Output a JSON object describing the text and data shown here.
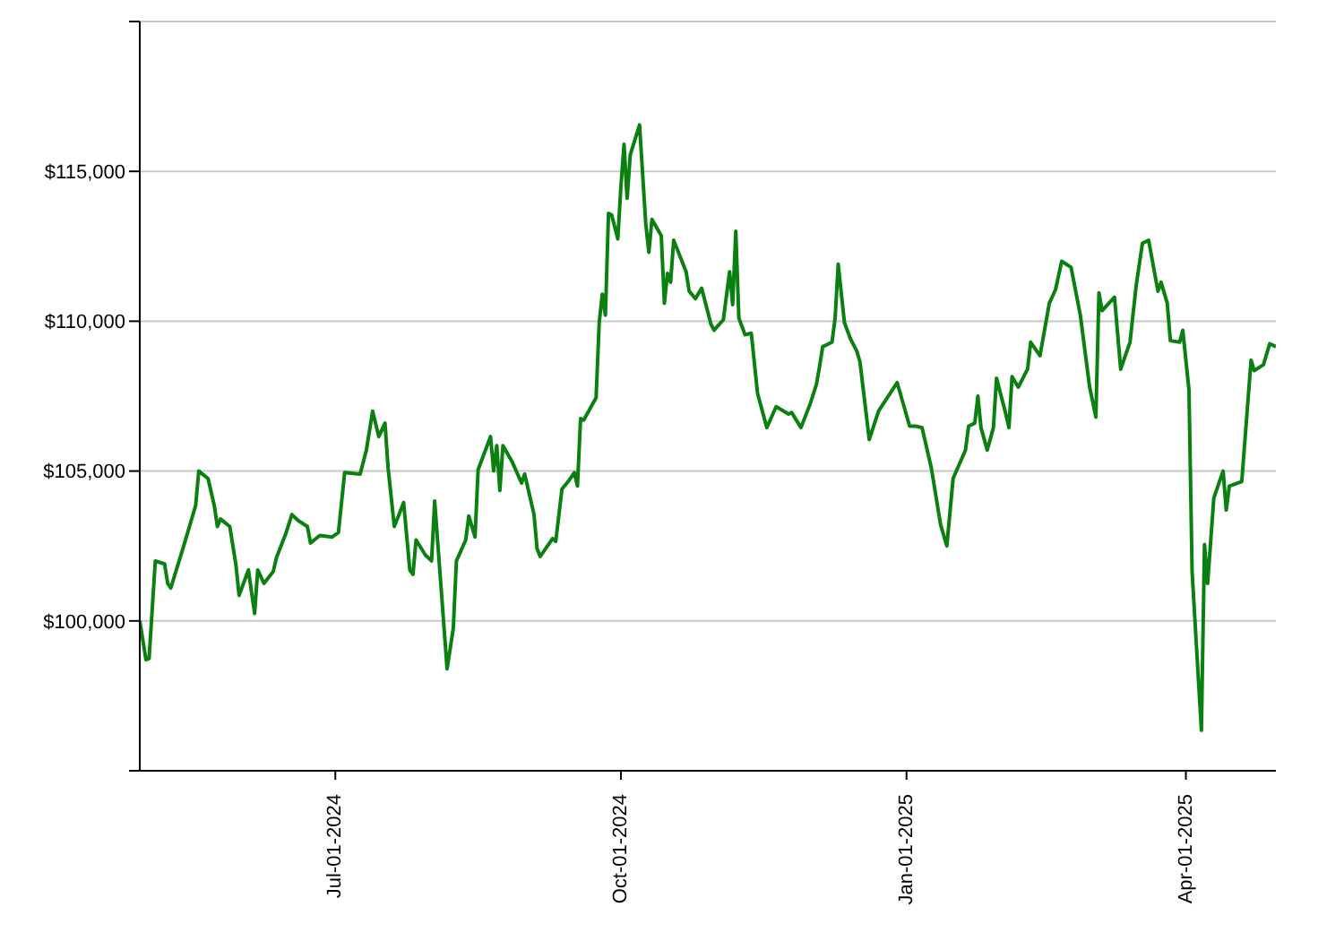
{
  "chart_data": {
    "type": "line",
    "xlim": [
      "2024-04-29",
      "2025-04-30"
    ],
    "xticks": [
      {
        "value": "2024-07-01",
        "label": "Jul-01-2024"
      },
      {
        "value": "2024-10-01",
        "label": "Oct-01-2024"
      },
      {
        "value": "2025-01-01",
        "label": "Jan-01-2025"
      },
      {
        "value": "2025-04-01",
        "label": "Apr-01-2025"
      }
    ],
    "ylim": [
      95000,
      120000
    ],
    "yticks": [
      {
        "value": 95000,
        "label": null
      },
      {
        "value": 100000,
        "label": "$100,000"
      },
      {
        "value": 105000,
        "label": "$105,000"
      },
      {
        "value": 110000,
        "label": "$110,000"
      },
      {
        "value": 115000,
        "label": "$115,000"
      },
      {
        "value": 120000,
        "label": null
      }
    ],
    "grid": "y",
    "marker": "none",
    "line_style": "solid",
    "x": [
      "2024-04-29",
      "2024-05-01",
      "2024-05-02",
      "2024-05-04",
      "2024-05-07",
      "2024-05-08",
      "2024-05-09",
      "2024-05-13",
      "2024-05-15",
      "2024-05-17",
      "2024-05-18",
      "2024-05-21",
      "2024-05-23",
      "2024-05-24",
      "2024-05-25",
      "2024-05-28",
      "2024-05-30",
      "2024-05-31",
      "2024-06-03",
      "2024-06-05",
      "2024-06-06",
      "2024-06-08",
      "2024-06-11",
      "2024-06-12",
      "2024-06-15",
      "2024-06-17",
      "2024-06-19",
      "2024-06-22",
      "2024-06-23",
      "2024-06-26",
      "2024-06-30",
      "2024-07-02",
      "2024-07-04",
      "2024-07-09",
      "2024-07-11",
      "2024-07-13",
      "2024-07-15",
      "2024-07-17",
      "2024-07-18",
      "2024-07-20",
      "2024-07-23",
      "2024-07-25",
      "2024-07-26",
      "2024-07-27",
      "2024-07-30",
      "2024-08-01",
      "2024-08-02",
      "2024-08-06",
      "2024-08-08",
      "2024-08-09",
      "2024-08-12",
      "2024-08-13",
      "2024-08-15",
      "2024-08-16",
      "2024-08-20",
      "2024-08-21",
      "2024-08-22",
      "2024-08-23",
      "2024-08-24",
      "2024-08-27",
      "2024-08-30",
      "2024-08-31",
      "2024-09-03",
      "2024-09-04",
      "2024-09-05",
      "2024-09-09",
      "2024-09-10",
      "2024-09-12",
      "2024-09-14",
      "2024-09-16",
      "2024-09-17",
      "2024-09-18",
      "2024-09-19",
      "2024-09-23",
      "2024-09-24",
      "2024-09-25",
      "2024-09-26",
      "2024-09-27",
      "2024-09-28",
      "2024-09-30",
      "2024-10-01",
      "2024-10-02",
      "2024-10-03",
      "2024-10-04",
      "2024-10-07",
      "2024-10-09",
      "2024-10-10",
      "2024-10-11",
      "2024-10-14",
      "2024-10-15",
      "2024-10-16",
      "2024-10-17",
      "2024-10-18",
      "2024-10-22",
      "2024-10-23",
      "2024-10-25",
      "2024-10-27",
      "2024-10-30",
      "2024-10-31",
      "2024-11-03",
      "2024-11-05",
      "2024-11-06",
      "2024-11-07",
      "2024-11-08",
      "2024-11-10",
      "2024-11-12",
      "2024-11-14",
      "2024-11-17",
      "2024-11-20",
      "2024-11-24",
      "2024-11-25",
      "2024-11-28",
      "2024-12-01",
      "2024-12-03",
      "2024-12-04",
      "2024-12-05",
      "2024-12-08",
      "2024-12-09",
      "2024-12-10",
      "2024-12-12",
      "2024-12-14",
      "2024-12-16",
      "2024-12-17",
      "2024-12-20",
      "2024-12-23",
      "2024-12-29",
      "2025-01-02",
      "2025-01-04",
      "2025-01-06",
      "2025-01-09",
      "2025-01-12",
      "2025-01-14",
      "2025-01-16",
      "2025-01-20",
      "2025-01-21",
      "2025-01-23",
      "2025-01-24",
      "2025-01-25",
      "2025-01-27",
      "2025-01-29",
      "2025-01-30",
      "2025-02-02",
      "2025-02-03",
      "2025-02-04",
      "2025-02-06",
      "2025-02-09",
      "2025-02-10",
      "2025-02-13",
      "2025-02-16",
      "2025-02-18",
      "2025-02-20",
      "2025-02-23",
      "2025-02-26",
      "2025-03-01",
      "2025-03-03",
      "2025-03-04",
      "2025-03-05",
      "2025-03-09",
      "2025-03-11",
      "2025-03-14",
      "2025-03-16",
      "2025-03-18",
      "2025-03-20",
      "2025-03-23",
      "2025-03-24",
      "2025-03-26",
      "2025-03-27",
      "2025-03-30",
      "2025-03-31",
      "2025-04-02",
      "2025-04-03",
      "2025-04-06",
      "2025-04-07",
      "2025-04-08",
      "2025-04-10",
      "2025-04-13",
      "2025-04-14",
      "2025-04-15",
      "2025-04-19",
      "2025-04-22",
      "2025-04-23",
      "2025-04-26",
      "2025-04-28",
      "2025-04-30"
    ],
    "series": [
      {
        "color": "#0a8010",
        "values": [
          100000,
          98700,
          98750,
          102000,
          101900,
          101250,
          101100,
          102450,
          103150,
          103850,
          105000,
          104750,
          103850,
          103150,
          103400,
          103150,
          101850,
          100850,
          101700,
          100250,
          101700,
          101250,
          101650,
          102100,
          102900,
          103550,
          103350,
          103150,
          102600,
          102850,
          102800,
          102950,
          104950,
          104900,
          105700,
          107000,
          106150,
          106600,
          105100,
          103150,
          103950,
          101700,
          101550,
          102700,
          102200,
          102000,
          104000,
          98400,
          99750,
          102000,
          102700,
          103500,
          102800,
          105050,
          106150,
          105000,
          105850,
          104350,
          105850,
          105300,
          104600,
          104900,
          103550,
          102400,
          102150,
          102750,
          102650,
          104400,
          104650,
          104950,
          104500,
          106750,
          106700,
          107450,
          109950,
          110900,
          110200,
          113600,
          113550,
          112750,
          114500,
          115900,
          114100,
          115550,
          116550,
          113250,
          112300,
          113400,
          112850,
          110600,
          111600,
          111300,
          112700,
          111650,
          111000,
          110750,
          111100,
          109900,
          109700,
          110050,
          111650,
          110550,
          113000,
          110100,
          109550,
          109600,
          107600,
          106450,
          107150,
          106900,
          106950,
          106450,
          107250,
          107900,
          108500,
          109150,
          109300,
          110100,
          111900,
          109950,
          109400,
          109000,
          108650,
          106050,
          107000,
          107950,
          106500,
          106500,
          106450,
          105100,
          103200,
          102500,
          104750,
          105700,
          106500,
          106600,
          107500,
          106450,
          105700,
          106450,
          108100,
          106900,
          106450,
          108150,
          107800,
          108400,
          109300,
          108850,
          110600,
          111050,
          112000,
          111800,
          110200,
          107800,
          106800,
          110950,
          110350,
          110800,
          108400,
          109300,
          111200,
          112600,
          112700,
          111000,
          111300,
          110600,
          109350,
          109300,
          109700,
          107700,
          101650,
          96350,
          102550,
          101250,
          104100,
          105000,
          103700,
          104500,
          104650,
          108700,
          108350,
          108550,
          109250,
          109150
        ]
      }
    ]
  }
}
